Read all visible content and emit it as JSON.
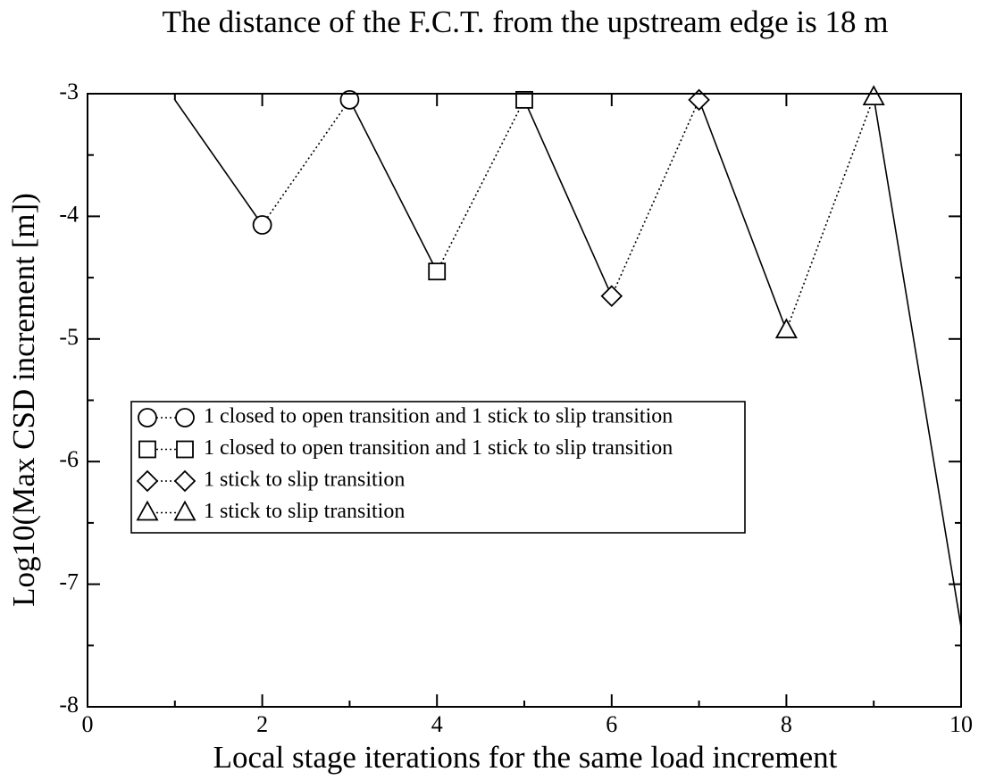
{
  "chart_data": {
    "type": "line",
    "title": "The distance of the F.C.T. from the upstream edge is 18 m",
    "x_label": "Local stage iterations for the same load increment",
    "y_label": "Log10(Max CSD increment [m])",
    "xlim": [
      0,
      10
    ],
    "xticks": [
      0,
      2,
      4,
      6,
      8,
      10
    ],
    "xminorticks": [
      1,
      3,
      5,
      7,
      9
    ],
    "ylim": [
      -8,
      -3
    ],
    "yticks": [
      -8,
      -7,
      -6,
      -5,
      -4,
      -3
    ],
    "yminorticks": [
      -7.5,
      -6.5,
      -5.5,
      -4.5,
      -3.5
    ],
    "series": [
      {
        "name": "1 closed to open transition and 1 stick to slip transition",
        "color": "#000000",
        "marker": "circle",
        "linestyle": "dotted",
        "x": [
          2,
          3
        ],
        "values": [
          -4.07,
          -3.05
        ]
      },
      {
        "name": "1 closed to open transition and 1 stick to slip transition",
        "color": "#000000",
        "marker": "square",
        "linestyle": "dotted",
        "x": [
          4,
          5
        ],
        "values": [
          -4.45,
          -3.05
        ]
      },
      {
        "name": "1 stick to slip transition",
        "color": "#000000",
        "marker": "diamond",
        "linestyle": "dotted",
        "x": [
          6,
          7
        ],
        "values": [
          -4.65,
          -3.05
        ]
      },
      {
        "name": "1 stick to slip transition",
        "color": "#000000",
        "marker": "triangle",
        "linestyle": "dotted",
        "x": [
          8,
          9
        ],
        "values": [
          -4.93,
          -3.03
        ]
      },
      {
        "color": "#000000",
        "linestyle": "solid",
        "x": [
          1,
          2
        ],
        "values": [
          -3.05,
          -4.07
        ]
      },
      {
        "color": "#000000",
        "linestyle": "solid",
        "x": [
          3,
          4
        ],
        "values": [
          -3.05,
          -4.45
        ]
      },
      {
        "color": "#000000",
        "linestyle": "solid",
        "x": [
          5,
          6
        ],
        "values": [
          -3.05,
          -4.65
        ]
      },
      {
        "color": "#000000",
        "linestyle": "solid",
        "x": [
          7,
          8
        ],
        "values": [
          -3.05,
          -4.93
        ]
      },
      {
        "color": "#000000",
        "linestyle": "solid",
        "x": [
          9,
          10
        ],
        "values": [
          -3.03,
          -7.35
        ]
      }
    ]
  }
}
